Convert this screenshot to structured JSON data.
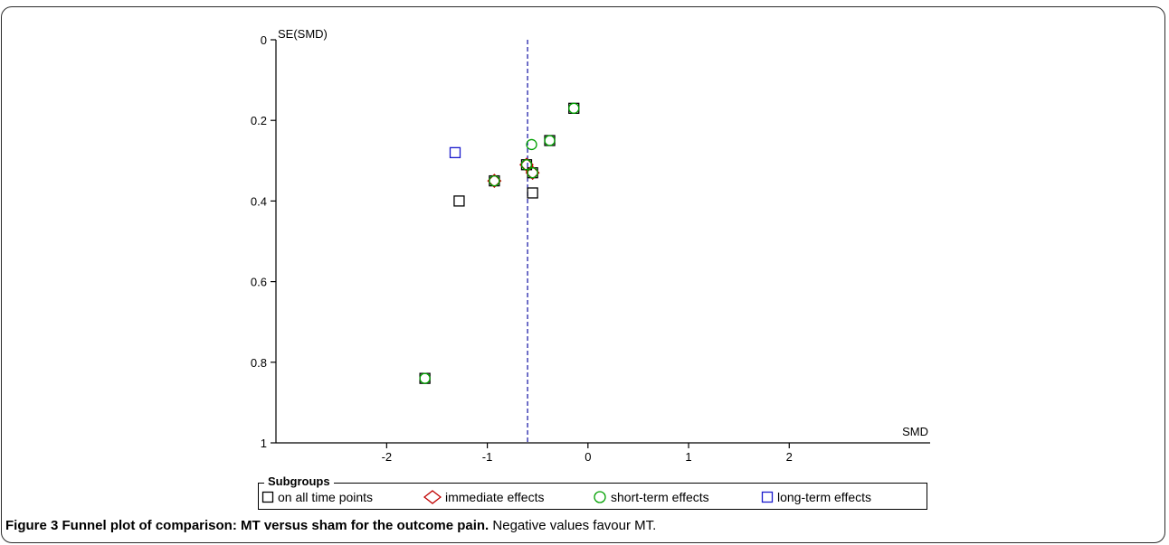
{
  "chart_data": {
    "type": "scatter",
    "title": "",
    "xlabel": "SMD",
    "ylabel": "SE(SMD)",
    "xlim": [
      -3.1,
      3.4
    ],
    "ylim": [
      0,
      1
    ],
    "y_inverted": true,
    "xticks": [
      -2,
      -1,
      0,
      1,
      2
    ],
    "xtick_labels": [
      "-2",
      "-1",
      "0",
      "1",
      "2"
    ],
    "yticks": [
      0,
      0.2,
      0.4,
      0.6,
      0.8,
      1
    ],
    "ytick_labels": [
      "0",
      "0.2",
      "0.4",
      "0.6",
      "0.8",
      "1"
    ],
    "reference_line": {
      "x": -0.6,
      "style": "dashed",
      "color": "#2222aa"
    },
    "grid": false,
    "legend": {
      "title": "Subgroups",
      "placement": "bottom"
    },
    "series": [
      {
        "name": "on all time points",
        "marker": "square",
        "color": "#000000",
        "points": [
          {
            "x": -1.28,
            "y": 0.4
          },
          {
            "x": -0.55,
            "y": 0.38
          },
          {
            "x": -0.93,
            "y": 0.35
          },
          {
            "x": -0.55,
            "y": 0.33
          },
          {
            "x": -0.61,
            "y": 0.31
          },
          {
            "x": -1.62,
            "y": 0.84
          },
          {
            "x": -0.38,
            "y": 0.25
          },
          {
            "x": -0.14,
            "y": 0.17
          }
        ]
      },
      {
        "name": "immediate effects",
        "marker": "diamond",
        "color": "#c00000",
        "points": [
          {
            "x": -0.93,
            "y": 0.35
          },
          {
            "x": -0.61,
            "y": 0.31
          },
          {
            "x": -0.55,
            "y": 0.33
          }
        ]
      },
      {
        "name": "short-term effects",
        "marker": "circle",
        "color": "#00a000",
        "points": [
          {
            "x": -0.56,
            "y": 0.26
          },
          {
            "x": -0.38,
            "y": 0.25
          },
          {
            "x": -0.14,
            "y": 0.17
          },
          {
            "x": -1.62,
            "y": 0.84
          },
          {
            "x": -0.93,
            "y": 0.35
          },
          {
            "x": -0.61,
            "y": 0.31
          },
          {
            "x": -0.55,
            "y": 0.33
          }
        ]
      },
      {
        "name": "long-term effects",
        "marker": "square",
        "color": "#1a1acc",
        "points": [
          {
            "x": -1.32,
            "y": 0.28
          }
        ]
      }
    ]
  },
  "caption": {
    "bold": "Figure 3 Funnel plot of comparison: MT versus sham for the outcome pain.",
    "rest": " Negative values favour MT."
  }
}
